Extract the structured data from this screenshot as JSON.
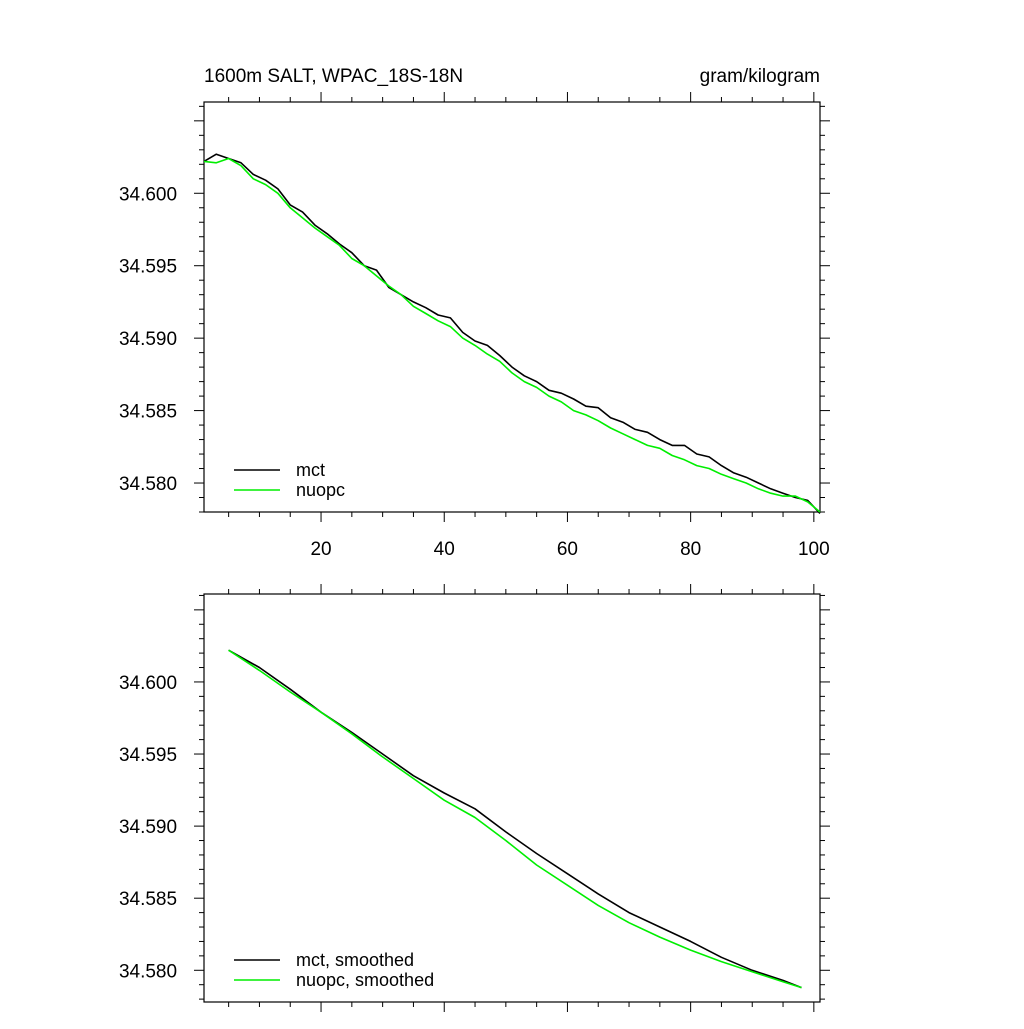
{
  "chart_data": [
    {
      "type": "line",
      "title": "1600m SALT, WPAC_18S-18N",
      "units": "gram/kilogram",
      "xlabel": "",
      "ylabel": "",
      "xlim": [
        1,
        101
      ],
      "ylim": [
        34.578,
        34.6063
      ],
      "xticks": [
        20,
        40,
        60,
        80,
        100
      ],
      "yticks": [
        34.58,
        34.585,
        34.59,
        34.595,
        34.6
      ],
      "ytick_labels": [
        "34.580",
        "34.585",
        "34.590",
        "34.595",
        "34.600"
      ],
      "xtick_labels": [
        "20",
        "40",
        "60",
        "80",
        "100"
      ],
      "legend_position": "bottom-left",
      "series": [
        {
          "name": "mct",
          "color": "#000000",
          "x": [
            1,
            3,
            5,
            7,
            9,
            11,
            13,
            15,
            17,
            19,
            21,
            23,
            25,
            27,
            29,
            31,
            33,
            35,
            37,
            39,
            41,
            43,
            45,
            47,
            49,
            51,
            53,
            55,
            57,
            59,
            61,
            63,
            65,
            67,
            69,
            71,
            73,
            75,
            77,
            79,
            81,
            83,
            85,
            87,
            89,
            91,
            93,
            95,
            97,
            99,
            101
          ],
          "values": [
            34.6022,
            34.6027,
            34.6024,
            34.6021,
            34.6013,
            34.6009,
            34.6003,
            34.5992,
            34.5987,
            34.5978,
            34.5972,
            34.5965,
            34.5959,
            34.595,
            34.5947,
            34.5935,
            34.593,
            34.5925,
            34.5921,
            34.5916,
            34.5914,
            34.5904,
            34.5898,
            34.5895,
            34.5888,
            34.588,
            34.5874,
            34.587,
            34.5864,
            34.5862,
            34.5858,
            34.5853,
            34.5852,
            34.5845,
            34.5842,
            34.5837,
            34.5835,
            34.583,
            34.5826,
            34.5826,
            34.582,
            34.5818,
            34.5812,
            34.5807,
            34.5804,
            34.58,
            34.5796,
            34.5793,
            34.579,
            34.5788,
            34.5779
          ]
        },
        {
          "name": "nuopc",
          "color": "#00ee00",
          "x": [
            1,
            3,
            5,
            7,
            9,
            11,
            13,
            15,
            17,
            19,
            21,
            23,
            25,
            27,
            29,
            31,
            33,
            35,
            37,
            39,
            41,
            43,
            45,
            47,
            49,
            51,
            53,
            55,
            57,
            59,
            61,
            63,
            65,
            67,
            69,
            71,
            73,
            75,
            77,
            79,
            81,
            83,
            85,
            87,
            89,
            91,
            93,
            95,
            97,
            99,
            101
          ],
          "values": [
            34.6022,
            34.6021,
            34.6024,
            34.6019,
            34.601,
            34.6006,
            34.6,
            34.599,
            34.5983,
            34.5976,
            34.597,
            34.5964,
            34.5955,
            34.595,
            34.5943,
            34.5936,
            34.593,
            34.5922,
            34.5917,
            34.5912,
            34.5908,
            34.59,
            34.5895,
            34.5889,
            34.5884,
            34.5876,
            34.587,
            34.5866,
            34.586,
            34.5856,
            34.585,
            34.5847,
            34.5843,
            34.5838,
            34.5834,
            34.583,
            34.5826,
            34.5824,
            34.5819,
            34.5816,
            34.5812,
            34.581,
            34.5806,
            34.5803,
            34.58,
            34.5796,
            34.5793,
            34.5791,
            34.5791,
            34.5787,
            34.578
          ]
        }
      ]
    },
    {
      "type": "line",
      "title": "",
      "xlabel": "",
      "ylabel": "",
      "xlim": [
        1,
        101
      ],
      "ylim": [
        34.5778,
        34.6061
      ],
      "xticks": [
        20,
        40,
        60,
        80,
        100
      ],
      "yticks": [
        34.58,
        34.585,
        34.59,
        34.595,
        34.6
      ],
      "ytick_labels": [
        "34.580",
        "34.585",
        "34.590",
        "34.595",
        "34.600"
      ],
      "legend_position": "bottom-left",
      "series": [
        {
          "name": "mct, smoothed",
          "color": "#000000",
          "x": [
            5,
            10,
            15,
            20,
            25,
            30,
            35,
            40,
            45,
            50,
            55,
            60,
            65,
            70,
            75,
            80,
            85,
            90,
            95,
            98
          ],
          "values": [
            34.6022,
            34.601,
            34.5995,
            34.5979,
            34.5965,
            34.595,
            34.5935,
            34.5923,
            34.5912,
            34.5896,
            34.5881,
            34.5867,
            34.5853,
            34.584,
            34.583,
            34.582,
            34.5809,
            34.58,
            34.5793,
            34.5788
          ]
        },
        {
          "name": "nuopc, smoothed",
          "color": "#00ee00",
          "x": [
            5,
            10,
            15,
            20,
            25,
            30,
            35,
            40,
            45,
            50,
            55,
            60,
            65,
            70,
            75,
            80,
            85,
            90,
            95,
            98
          ],
          "values": [
            34.6022,
            34.6008,
            34.5993,
            34.5979,
            34.5964,
            34.5948,
            34.5933,
            34.5918,
            34.5906,
            34.589,
            34.5873,
            34.5859,
            34.5845,
            34.5833,
            34.5823,
            34.5814,
            34.5806,
            34.5799,
            34.5792,
            34.5788
          ]
        }
      ]
    }
  ]
}
